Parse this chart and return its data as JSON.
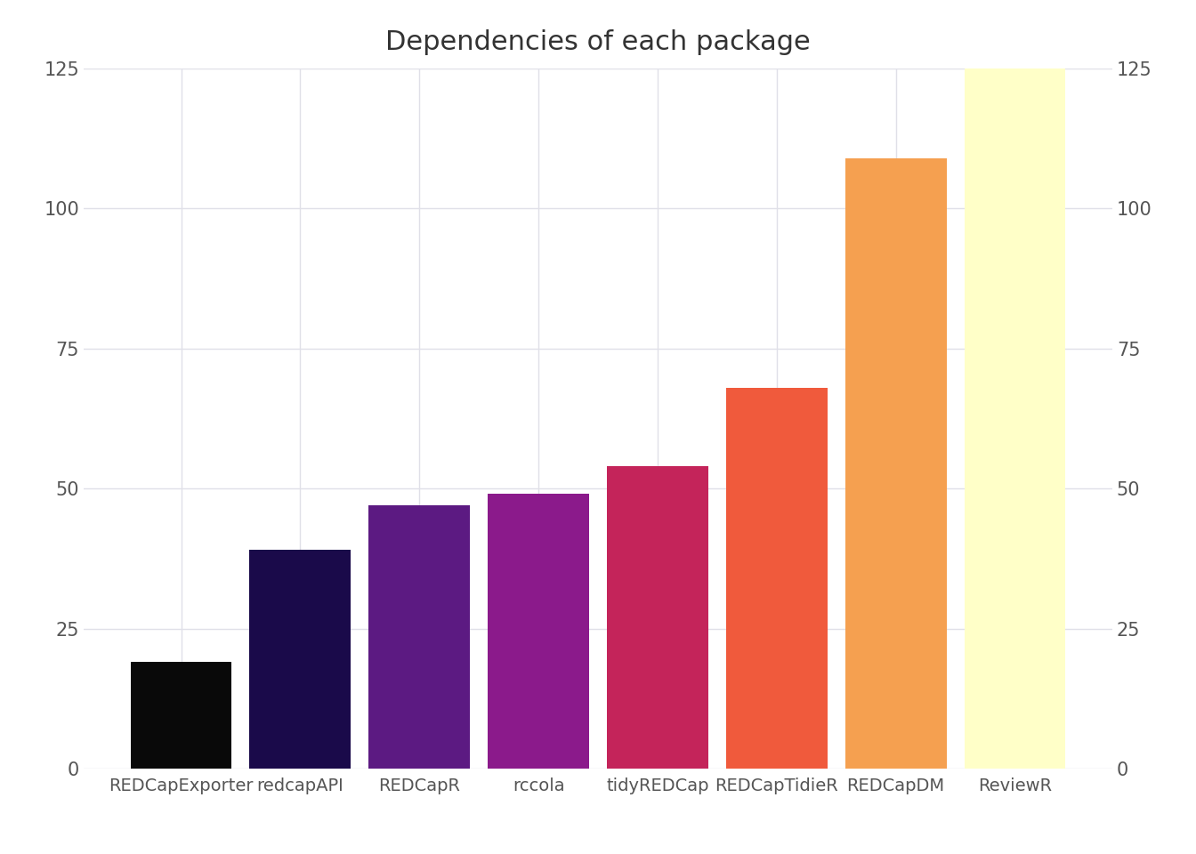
{
  "categories": [
    "REDCapExporter",
    "redcapAPI",
    "REDCapR",
    "rccola",
    "tidyREDCap",
    "REDCapTidieR",
    "REDCapDM",
    "ReviewR"
  ],
  "values": [
    19,
    39,
    47,
    49,
    54,
    68,
    109,
    125
  ],
  "bar_colors": [
    "#090909",
    "#1A0A4A",
    "#5C1A82",
    "#8B1A8B",
    "#C4245A",
    "#F05A3C",
    "#F5A050",
    "#FFFFC8"
  ],
  "title": "Dependencies of each package",
  "ylim": [
    0,
    125
  ],
  "yticks": [
    0,
    25,
    50,
    75,
    100,
    125
  ],
  "background_color": "#FFFFFF",
  "grid_color": "#E0E0E8",
  "title_fontsize": 22,
  "tick_fontsize": 15,
  "label_fontsize": 14
}
